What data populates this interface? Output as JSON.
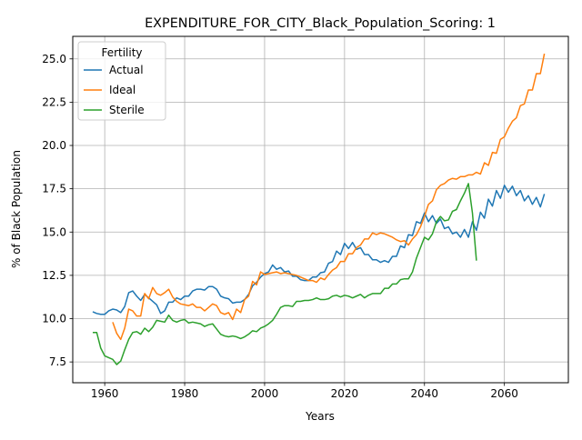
{
  "chart_data": {
    "type": "line",
    "title": "EXPENDITURE_FOR_CITY_Black_Population_Scoring: 1",
    "xlabel": "Years",
    "ylabel": "% of Black Population",
    "xlim": [
      1952,
      2076
    ],
    "ylim": [
      6.3,
      26.3
    ],
    "xticks": [
      1960,
      1980,
      2000,
      2020,
      2040,
      2060
    ],
    "yticks": [
      7.5,
      10.0,
      12.5,
      15.0,
      17.5,
      20.0,
      22.5,
      25.0
    ],
    "grid": true,
    "legend": {
      "title": "Fertility",
      "placement": "top-left"
    },
    "series": [
      {
        "name": "Actual",
        "color": "#1f77b4",
        "x": [
          1957,
          1958,
          1959,
          1960,
          1961,
          1962,
          1963,
          1964,
          1965,
          1966,
          1967,
          1968,
          1969,
          1970,
          1971,
          1972,
          1973,
          1974,
          1975,
          1976,
          1977,
          1978,
          1979,
          1980,
          1981,
          1982,
          1983,
          1984,
          1985,
          1986,
          1987,
          1988,
          1989,
          1990,
          1991,
          1992,
          1993,
          1994,
          1995,
          1996,
          1997,
          1998,
          1999,
          2000,
          2001,
          2002,
          2003,
          2004,
          2005,
          2006,
          2007,
          2008,
          2009,
          2010,
          2011,
          2012,
          2013,
          2014,
          2015,
          2016,
          2017,
          2018,
          2019,
          2020,
          2021,
          2022,
          2023,
          2024,
          2025,
          2026,
          2027,
          2028,
          2029,
          2030,
          2031,
          2032,
          2033,
          2034,
          2035,
          2036,
          2037,
          2038,
          2039,
          2040,
          2041,
          2042,
          2043,
          2044,
          2045,
          2046,
          2047,
          2048,
          2049,
          2050,
          2051,
          2052,
          2053,
          2054,
          2055,
          2056,
          2057,
          2058,
          2059,
          2060,
          2061,
          2062,
          2063,
          2064,
          2065,
          2066,
          2067,
          2068,
          2069,
          2070
        ],
        "values": [
          10.4,
          10.3,
          10.25,
          10.25,
          10.45,
          10.55,
          10.5,
          10.35,
          10.7,
          11.5,
          11.6,
          11.3,
          11.05,
          11.4,
          11.2,
          11.0,
          10.8,
          10.3,
          10.45,
          10.95,
          10.95,
          11.2,
          11.1,
          11.3,
          11.3,
          11.6,
          11.7,
          11.7,
          11.65,
          11.85,
          11.85,
          11.7,
          11.3,
          11.2,
          11.15,
          10.9,
          10.95,
          10.95,
          11.1,
          11.4,
          11.9,
          12.1,
          12.4,
          12.6,
          12.7,
          13.1,
          12.85,
          12.95,
          12.7,
          12.75,
          12.45,
          12.45,
          12.25,
          12.2,
          12.2,
          12.4,
          12.4,
          12.65,
          12.7,
          13.2,
          13.3,
          13.9,
          13.7,
          14.35,
          14.05,
          14.4,
          14.0,
          14.1,
          13.7,
          13.7,
          13.4,
          13.4,
          13.25,
          13.35,
          13.25,
          13.6,
          13.6,
          14.2,
          14.1,
          14.85,
          14.8,
          15.6,
          15.5,
          16.1,
          15.6,
          15.95,
          15.5,
          15.75,
          15.2,
          15.3,
          14.9,
          15.0,
          14.7,
          15.15,
          14.7,
          15.6,
          15.1,
          16.15,
          15.8,
          16.9,
          16.5,
          17.4,
          16.95,
          17.7,
          17.3,
          17.65,
          17.1,
          17.4,
          16.8,
          17.1,
          16.6,
          17.0,
          16.45,
          17.2
        ]
      },
      {
        "name": "Ideal",
        "color": "#ff7f0e",
        "x": [
          1962,
          1963,
          1964,
          1965,
          1966,
          1967,
          1968,
          1969,
          1970,
          1971,
          1972,
          1973,
          1974,
          1975,
          1976,
          1977,
          1978,
          1979,
          1980,
          1981,
          1982,
          1983,
          1984,
          1985,
          1986,
          1987,
          1988,
          1989,
          1990,
          1991,
          1992,
          1993,
          1994,
          1995,
          1996,
          1997,
          1998,
          1999,
          2000,
          2001,
          2002,
          2003,
          2004,
          2005,
          2006,
          2007,
          2008,
          2009,
          2010,
          2011,
          2012,
          2013,
          2014,
          2015,
          2016,
          2017,
          2018,
          2019,
          2020,
          2021,
          2022,
          2023,
          2024,
          2025,
          2026,
          2027,
          2028,
          2029,
          2030,
          2031,
          2032,
          2033,
          2034,
          2035,
          2036,
          2037,
          2038,
          2039,
          2040,
          2041,
          2042,
          2043,
          2044,
          2045,
          2046,
          2047,
          2048,
          2049,
          2050,
          2051,
          2052,
          2053,
          2054,
          2055,
          2056,
          2057,
          2058,
          2059,
          2060,
          2061,
          2062,
          2063,
          2064,
          2065,
          2066,
          2067,
          2068,
          2069,
          2070
        ],
        "values": [
          9.8,
          9.15,
          8.8,
          9.45,
          10.55,
          10.45,
          10.15,
          10.15,
          11.45,
          11.15,
          11.8,
          11.45,
          11.35,
          11.5,
          11.7,
          11.25,
          11.0,
          10.85,
          10.8,
          10.75,
          10.85,
          10.65,
          10.65,
          10.45,
          10.65,
          10.85,
          10.75,
          10.35,
          10.25,
          10.35,
          9.95,
          10.55,
          10.35,
          11.1,
          11.3,
          12.15,
          11.95,
          12.7,
          12.55,
          12.6,
          12.65,
          12.7,
          12.6,
          12.65,
          12.6,
          12.55,
          12.5,
          12.4,
          12.3,
          12.2,
          12.2,
          12.1,
          12.35,
          12.25,
          12.55,
          12.8,
          12.95,
          13.3,
          13.3,
          13.75,
          13.75,
          14.1,
          14.25,
          14.6,
          14.6,
          14.95,
          14.85,
          14.95,
          14.9,
          14.8,
          14.7,
          14.55,
          14.45,
          14.5,
          14.25,
          14.6,
          14.85,
          15.3,
          15.9,
          16.6,
          16.8,
          17.45,
          17.7,
          17.8,
          18.0,
          18.1,
          18.05,
          18.2,
          18.2,
          18.3,
          18.3,
          18.45,
          18.35,
          19.0,
          18.85,
          19.6,
          19.55,
          20.35,
          20.5,
          21.0,
          21.4,
          21.6,
          22.3,
          22.4,
          23.2,
          23.2,
          24.15,
          24.15,
          25.3
        ]
      },
      {
        "name": "Sterile",
        "color": "#2ca02c",
        "x": [
          1957,
          1958,
          1959,
          1960,
          1961,
          1962,
          1963,
          1964,
          1965,
          1966,
          1967,
          1968,
          1969,
          1970,
          1971,
          1972,
          1973,
          1974,
          1975,
          1976,
          1977,
          1978,
          1979,
          1980,
          1981,
          1982,
          1983,
          1984,
          1985,
          1986,
          1987,
          1988,
          1989,
          1990,
          1991,
          1992,
          1993,
          1994,
          1995,
          1996,
          1997,
          1998,
          1999,
          2000,
          2001,
          2002,
          2003,
          2004,
          2005,
          2006,
          2007,
          2008,
          2009,
          2010,
          2011,
          2012,
          2013,
          2014,
          2015,
          2016,
          2017,
          2018,
          2019,
          2020,
          2021,
          2022,
          2023,
          2024,
          2025,
          2026,
          2027,
          2028,
          2029,
          2030,
          2031,
          2032,
          2033,
          2034,
          2035,
          2036,
          2037,
          2038,
          2039,
          2040,
          2041,
          2042,
          2043,
          2044,
          2045,
          2046,
          2047,
          2048,
          2049,
          2050,
          2051,
          2052,
          2053
        ],
        "values": [
          9.2,
          9.2,
          8.3,
          7.85,
          7.75,
          7.65,
          7.35,
          7.55,
          8.2,
          8.8,
          9.2,
          9.25,
          9.1,
          9.45,
          9.25,
          9.5,
          9.9,
          9.85,
          9.8,
          10.2,
          9.9,
          9.8,
          9.9,
          9.95,
          9.75,
          9.8,
          9.75,
          9.7,
          9.55,
          9.65,
          9.7,
          9.4,
          9.1,
          9.0,
          8.95,
          9.0,
          8.95,
          8.85,
          8.95,
          9.1,
          9.3,
          9.25,
          9.45,
          9.55,
          9.7,
          9.9,
          10.25,
          10.65,
          10.75,
          10.75,
          10.7,
          11.0,
          11.0,
          11.05,
          11.05,
          11.1,
          11.2,
          11.1,
          11.1,
          11.15,
          11.3,
          11.35,
          11.25,
          11.35,
          11.3,
          11.2,
          11.3,
          11.4,
          11.2,
          11.35,
          11.45,
          11.45,
          11.45,
          11.75,
          11.75,
          12.0,
          12.0,
          12.25,
          12.3,
          12.3,
          12.7,
          13.5,
          14.1,
          14.7,
          14.55,
          14.9,
          15.6,
          15.9,
          15.65,
          15.7,
          16.2,
          16.3,
          16.8,
          17.25,
          17.8,
          16.1,
          13.35
        ]
      }
    ]
  }
}
